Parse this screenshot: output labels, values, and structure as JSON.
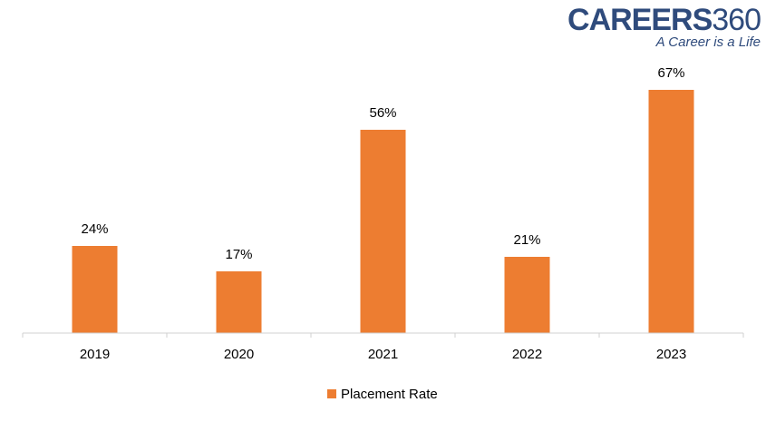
{
  "logo": {
    "part1": "CAREERS",
    "part2": "360",
    "tagline": "A Career is a Life"
  },
  "chart_data": {
    "type": "bar",
    "categories": [
      "2019",
      "2020",
      "2021",
      "2022",
      "2023"
    ],
    "series": [
      {
        "name": "Placement Rate",
        "values": [
          24,
          17,
          56,
          21,
          67
        ],
        "color": "#ED7D31"
      }
    ],
    "data_labels": [
      "24%",
      "17%",
      "56%",
      "21%",
      "67%"
    ],
    "unit": "%",
    "ylim": [
      0,
      67
    ],
    "grid": false,
    "legend": "bottom-center",
    "title": "",
    "xlabel": "",
    "ylabel": ""
  }
}
